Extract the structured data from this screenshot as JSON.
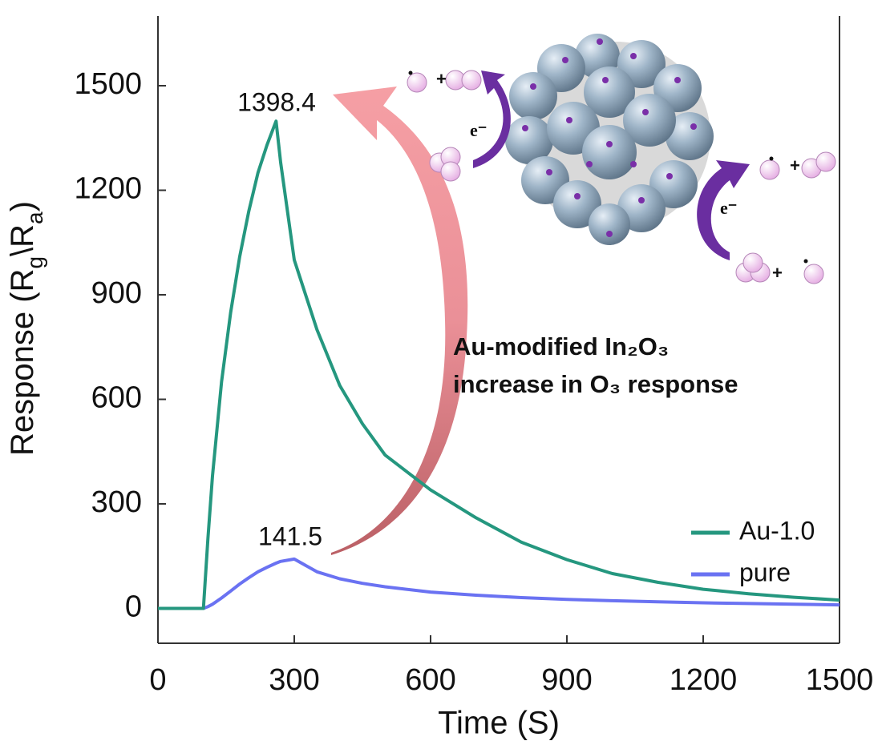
{
  "chart_data": {
    "type": "line",
    "xlabel": "Time (S)",
    "ylabel": [
      "Response (R",
      "g",
      "\\R",
      "a",
      ")"
    ],
    "x": [
      0,
      100,
      110,
      120,
      140,
      160,
      180,
      200,
      220,
      240,
      260,
      270,
      300,
      350,
      400,
      450,
      500,
      600,
      700,
      800,
      900,
      1000,
      1100,
      1200,
      1300,
      1400,
      1500
    ],
    "series": [
      {
        "name": "Au-1.0",
        "color": "#25977f",
        "values": [
          0,
          0,
          200,
          380,
          650,
          850,
          1010,
          1140,
          1250,
          1330,
          1398.4,
          1280,
          1000,
          800,
          640,
          530,
          440,
          340,
          260,
          190,
          140,
          100,
          75,
          55,
          42,
          32,
          24
        ]
      },
      {
        "name": "pure",
        "color": "#6a72f2",
        "values": [
          0,
          0,
          5,
          12,
          30,
          50,
          70,
          88,
          105,
          118,
          130,
          135,
          141.5,
          105,
          85,
          72,
          62,
          47,
          38,
          31,
          26,
          22,
          19,
          16,
          14,
          12,
          10
        ]
      }
    ],
    "xlim": [
      0,
      1500
    ],
    "xticks": [
      0,
      300,
      600,
      900,
      1200,
      1500
    ],
    "ylim": [
      -100,
      1700
    ],
    "yticks": [
      0,
      300,
      600,
      900,
      1200,
      1500
    ],
    "legend": "lower right",
    "annotations": [
      "1398.4",
      "141.5",
      "Au-modified In₂O₃",
      "increase in O₃ response",
      "e⁻",
      "e⁻"
    ]
  }
}
